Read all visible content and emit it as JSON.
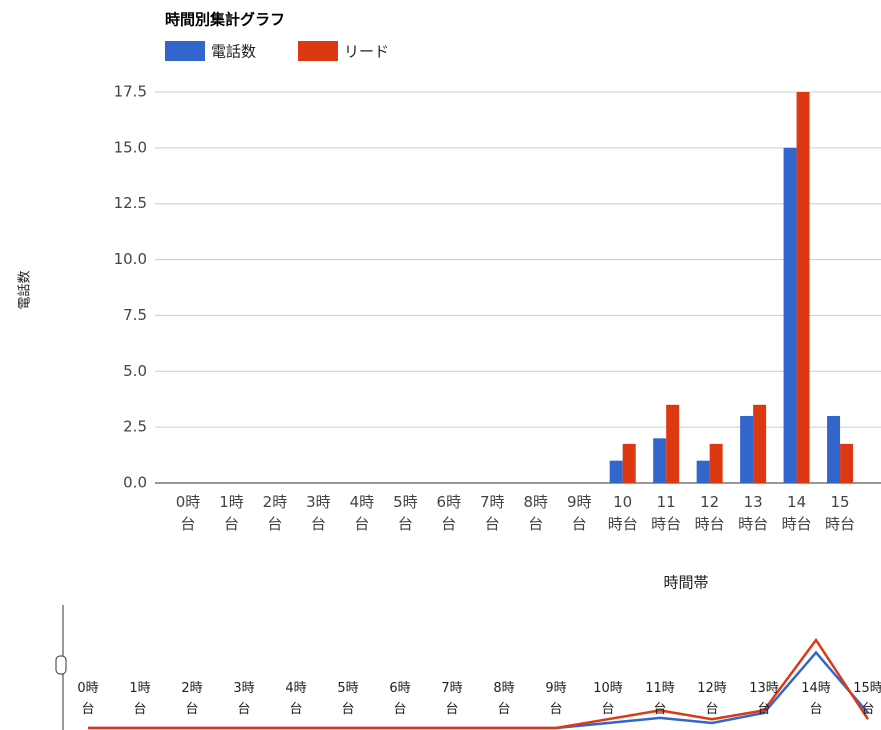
{
  "chart_data": {
    "type": "bar",
    "title": "時間別集計グラフ",
    "y_label": "電話数",
    "x_label": "時間帯",
    "categories": [
      "0時台",
      "1時台",
      "2時台",
      "3時台",
      "4時台",
      "5時台",
      "6時台",
      "7時台",
      "8時台",
      "9時台",
      "10時台",
      "11時台",
      "12時台",
      "13時台",
      "14時台",
      "15時台"
    ],
    "series": [
      {
        "name": "電話数",
        "color": "#3366cc",
        "values": [
          0,
          0,
          0,
          0,
          0,
          0,
          0,
          0,
          0,
          0,
          1,
          2,
          1,
          3,
          15,
          3
        ]
      },
      {
        "name": "リード",
        "color": "#dc3912",
        "values": [
          0,
          0,
          0,
          0,
          0,
          0,
          0,
          0,
          0,
          0,
          1.75,
          3.5,
          1.75,
          3.5,
          17.5,
          1.75
        ]
      }
    ],
    "ylim": [
      0,
      17.5
    ],
    "yticks": [
      {
        "value": 0,
        "label": "0.0"
      },
      {
        "value": 2.5,
        "label": "2.5"
      },
      {
        "value": 5,
        "label": "5.0"
      },
      {
        "value": 7.5,
        "label": "7.5"
      },
      {
        "value": 10,
        "label": "10.0"
      },
      {
        "value": 12.5,
        "label": "12.5"
      },
      {
        "value": 15,
        "label": "15.0"
      },
      {
        "value": 17.5,
        "label": "17.5"
      }
    ],
    "grid": true,
    "legend": "top"
  }
}
